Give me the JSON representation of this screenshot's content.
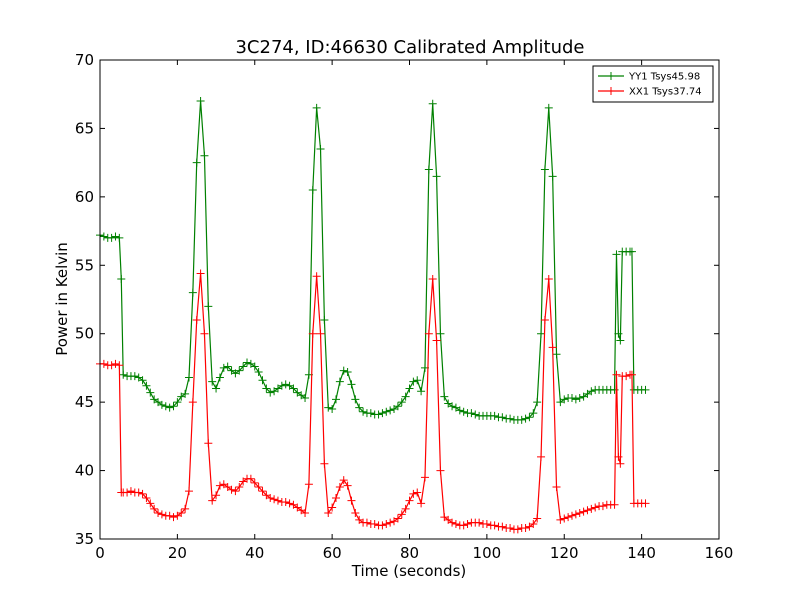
{
  "chart_data": {
    "type": "line",
    "title": "3C274, ID:46630 Calibrated Amplitude",
    "xlabel": "Time (seconds)",
    "ylabel": "Power in Kelvin",
    "xlim": [
      0,
      160
    ],
    "ylim": [
      35,
      70
    ],
    "xticks": [
      0,
      20,
      40,
      60,
      80,
      100,
      120,
      140,
      160
    ],
    "yticks": [
      35,
      40,
      45,
      50,
      55,
      60,
      65,
      70
    ],
    "grid": false,
    "legend_position": "top-right",
    "series": [
      {
        "name": "YY1 Tsys45.98",
        "color": "#008000",
        "marker": "plus",
        "points": [
          [
            0,
            57.2
          ],
          [
            1,
            57.1
          ],
          [
            2,
            57.0
          ],
          [
            3,
            57.0
          ],
          [
            4,
            57.1
          ],
          [
            5,
            57.0
          ],
          [
            5.5,
            54.0
          ],
          [
            6,
            47.0
          ],
          [
            7,
            46.9
          ],
          [
            8,
            46.9
          ],
          [
            9,
            46.9
          ],
          [
            10,
            46.8
          ],
          [
            11,
            46.6
          ],
          [
            12,
            46.2
          ],
          [
            13,
            45.7
          ],
          [
            14,
            45.2
          ],
          [
            15,
            45.0
          ],
          [
            16,
            44.8
          ],
          [
            17,
            44.7
          ],
          [
            18,
            44.6
          ],
          [
            19,
            44.7
          ],
          [
            20,
            45.0
          ],
          [
            21,
            45.4
          ],
          [
            22,
            45.6
          ],
          [
            23,
            46.8
          ],
          [
            24,
            53.0
          ],
          [
            25,
            62.5
          ],
          [
            26,
            67.0
          ],
          [
            27,
            63.0
          ],
          [
            28,
            52.0
          ],
          [
            29,
            46.5
          ],
          [
            30,
            46.0
          ],
          [
            31,
            46.8
          ],
          [
            32,
            47.5
          ],
          [
            33,
            47.6
          ],
          [
            34,
            47.3
          ],
          [
            35,
            47.1
          ],
          [
            36,
            47.3
          ],
          [
            37,
            47.6
          ],
          [
            38,
            47.9
          ],
          [
            39,
            47.8
          ],
          [
            40,
            47.6
          ],
          [
            41,
            47.2
          ],
          [
            42,
            46.6
          ],
          [
            43,
            46.0
          ],
          [
            44,
            45.7
          ],
          [
            45,
            45.8
          ],
          [
            46,
            46.0
          ],
          [
            47,
            46.2
          ],
          [
            48,
            46.3
          ],
          [
            49,
            46.2
          ],
          [
            50,
            46.0
          ],
          [
            51,
            45.7
          ],
          [
            52,
            45.5
          ],
          [
            53,
            45.3
          ],
          [
            54,
            47.0
          ],
          [
            55,
            60.5
          ],
          [
            56,
            66.5
          ],
          [
            57,
            63.5
          ],
          [
            58,
            51.0
          ],
          [
            59,
            44.6
          ],
          [
            60,
            44.5
          ],
          [
            61,
            45.2
          ],
          [
            62,
            46.5
          ],
          [
            63,
            47.3
          ],
          [
            64,
            47.2
          ],
          [
            65,
            46.3
          ],
          [
            66,
            45.2
          ],
          [
            67,
            44.6
          ],
          [
            68,
            44.3
          ],
          [
            69,
            44.2
          ],
          [
            70,
            44.2
          ],
          [
            71,
            44.1
          ],
          [
            72,
            44.1
          ],
          [
            73,
            44.2
          ],
          [
            74,
            44.3
          ],
          [
            75,
            44.4
          ],
          [
            76,
            44.5
          ],
          [
            77,
            44.7
          ],
          [
            78,
            45.0
          ],
          [
            79,
            45.4
          ],
          [
            80,
            46.0
          ],
          [
            81,
            46.5
          ],
          [
            82,
            46.6
          ],
          [
            83,
            45.8
          ],
          [
            84,
            47.5
          ],
          [
            85,
            62.0
          ],
          [
            86,
            66.8
          ],
          [
            87,
            61.5
          ],
          [
            88,
            50.0
          ],
          [
            89,
            45.4
          ],
          [
            90,
            44.9
          ],
          [
            91,
            44.7
          ],
          [
            92,
            44.6
          ],
          [
            93,
            44.4
          ],
          [
            94,
            44.3
          ],
          [
            95,
            44.2
          ],
          [
            96,
            44.2
          ],
          [
            97,
            44.1
          ],
          [
            98,
            44.0
          ],
          [
            99,
            44.0
          ],
          [
            100,
            44.0
          ],
          [
            101,
            44.0
          ],
          [
            102,
            44.0
          ],
          [
            103,
            43.9
          ],
          [
            104,
            43.9
          ],
          [
            105,
            43.8
          ],
          [
            106,
            43.8
          ],
          [
            107,
            43.7
          ],
          [
            108,
            43.7
          ],
          [
            109,
            43.7
          ],
          [
            110,
            43.8
          ],
          [
            111,
            43.9
          ],
          [
            112,
            44.2
          ],
          [
            113,
            45.0
          ],
          [
            114,
            50.0
          ],
          [
            115,
            62.0
          ],
          [
            116,
            66.5
          ],
          [
            117,
            61.5
          ],
          [
            118,
            48.5
          ],
          [
            119,
            45.0
          ],
          [
            120,
            45.2
          ],
          [
            121,
            45.3
          ],
          [
            122,
            45.3
          ],
          [
            123,
            45.2
          ],
          [
            124,
            45.3
          ],
          [
            125,
            45.4
          ],
          [
            126,
            45.6
          ],
          [
            127,
            45.8
          ],
          [
            128,
            45.9
          ],
          [
            129,
            45.9
          ],
          [
            130,
            45.9
          ],
          [
            131,
            45.9
          ],
          [
            132,
            45.9
          ],
          [
            133,
            45.9
          ],
          [
            133.5,
            55.8
          ],
          [
            134,
            50.0
          ],
          [
            134.5,
            49.5
          ],
          [
            135,
            56.0
          ],
          [
            136,
            56.0
          ],
          [
            137,
            56.0
          ],
          [
            137.5,
            56.0
          ],
          [
            138,
            45.9
          ],
          [
            139,
            45.9
          ],
          [
            140,
            45.9
          ],
          [
            141,
            45.9
          ]
        ]
      },
      {
        "name": "XX1 Tsys37.74",
        "color": "#ff0000",
        "marker": "plus",
        "points": [
          [
            0,
            47.8
          ],
          [
            1,
            47.8
          ],
          [
            2,
            47.7
          ],
          [
            3,
            47.7
          ],
          [
            4,
            47.8
          ],
          [
            5,
            47.7
          ],
          [
            5.5,
            38.4
          ],
          [
            6,
            38.4
          ],
          [
            7,
            38.4
          ],
          [
            8,
            38.5
          ],
          [
            9,
            38.4
          ],
          [
            10,
            38.4
          ],
          [
            11,
            38.3
          ],
          [
            12,
            38.0
          ],
          [
            13,
            37.6
          ],
          [
            14,
            37.2
          ],
          [
            15,
            36.9
          ],
          [
            16,
            36.8
          ],
          [
            17,
            36.7
          ],
          [
            18,
            36.7
          ],
          [
            19,
            36.6
          ],
          [
            20,
            36.7
          ],
          [
            21,
            36.9
          ],
          [
            22,
            37.2
          ],
          [
            23,
            38.5
          ],
          [
            24,
            45.0
          ],
          [
            25,
            51.0
          ],
          [
            26,
            54.4
          ],
          [
            27,
            50.0
          ],
          [
            28,
            42.0
          ],
          [
            29,
            37.8
          ],
          [
            30,
            38.2
          ],
          [
            31,
            38.9
          ],
          [
            32,
            39.0
          ],
          [
            33,
            38.8
          ],
          [
            34,
            38.6
          ],
          [
            35,
            38.5
          ],
          [
            36,
            38.8
          ],
          [
            37,
            39.2
          ],
          [
            38,
            39.4
          ],
          [
            39,
            39.4
          ],
          [
            40,
            39.1
          ],
          [
            41,
            38.8
          ],
          [
            42,
            38.5
          ],
          [
            43,
            38.2
          ],
          [
            44,
            38.0
          ],
          [
            45,
            37.9
          ],
          [
            46,
            37.8
          ],
          [
            47,
            37.7
          ],
          [
            48,
            37.7
          ],
          [
            49,
            37.6
          ],
          [
            50,
            37.5
          ],
          [
            51,
            37.3
          ],
          [
            52,
            37.1
          ],
          [
            53,
            36.9
          ],
          [
            54,
            39.0
          ],
          [
            55,
            50.0
          ],
          [
            56,
            54.2
          ],
          [
            57,
            50.0
          ],
          [
            58,
            40.5
          ],
          [
            59,
            36.9
          ],
          [
            60,
            37.3
          ],
          [
            61,
            38.0
          ],
          [
            62,
            38.8
          ],
          [
            63,
            39.3
          ],
          [
            64,
            38.9
          ],
          [
            65,
            37.8
          ],
          [
            66,
            36.9
          ],
          [
            67,
            36.4
          ],
          [
            68,
            36.2
          ],
          [
            69,
            36.2
          ],
          [
            70,
            36.1
          ],
          [
            71,
            36.1
          ],
          [
            72,
            36.0
          ],
          [
            73,
            36.0
          ],
          [
            74,
            36.1
          ],
          [
            75,
            36.2
          ],
          [
            76,
            36.3
          ],
          [
            77,
            36.5
          ],
          [
            78,
            36.8
          ],
          [
            79,
            37.2
          ],
          [
            80,
            37.8
          ],
          [
            81,
            38.3
          ],
          [
            82,
            38.4
          ],
          [
            83,
            37.6
          ],
          [
            84,
            39.5
          ],
          [
            85,
            50.0
          ],
          [
            86,
            54.0
          ],
          [
            87,
            49.5
          ],
          [
            88,
            40.0
          ],
          [
            89,
            36.6
          ],
          [
            90,
            36.4
          ],
          [
            91,
            36.2
          ],
          [
            92,
            36.1
          ],
          [
            93,
            36.0
          ],
          [
            94,
            36.0
          ],
          [
            95,
            36.1
          ],
          [
            96,
            36.2
          ],
          [
            97,
            36.2
          ],
          [
            98,
            36.2
          ],
          [
            99,
            36.1
          ],
          [
            100,
            36.1
          ],
          [
            101,
            36.0
          ],
          [
            102,
            36.0
          ],
          [
            103,
            35.9
          ],
          [
            104,
            35.9
          ],
          [
            105,
            35.8
          ],
          [
            106,
            35.8
          ],
          [
            107,
            35.7
          ],
          [
            108,
            35.7
          ],
          [
            109,
            35.8
          ],
          [
            110,
            35.8
          ],
          [
            111,
            35.9
          ],
          [
            112,
            36.1
          ],
          [
            113,
            36.5
          ],
          [
            114,
            41.0
          ],
          [
            115,
            51.0
          ],
          [
            116,
            54.0
          ],
          [
            117,
            49.0
          ],
          [
            118,
            38.8
          ],
          [
            119,
            36.4
          ],
          [
            120,
            36.5
          ],
          [
            121,
            36.6
          ],
          [
            122,
            36.7
          ],
          [
            123,
            36.8
          ],
          [
            124,
            36.9
          ],
          [
            125,
            37.0
          ],
          [
            126,
            37.1
          ],
          [
            127,
            37.2
          ],
          [
            128,
            37.3
          ],
          [
            129,
            37.4
          ],
          [
            130,
            37.4
          ],
          [
            131,
            37.5
          ],
          [
            132,
            37.5
          ],
          [
            133,
            37.5
          ],
          [
            133.5,
            47.0
          ],
          [
            134,
            41.0
          ],
          [
            134.5,
            40.5
          ],
          [
            135,
            46.9
          ],
          [
            136,
            46.9
          ],
          [
            137,
            47.0
          ],
          [
            137.5,
            47.0
          ],
          [
            138,
            37.6
          ],
          [
            139,
            37.6
          ],
          [
            140,
            37.6
          ],
          [
            141,
            37.6
          ]
        ]
      }
    ]
  }
}
